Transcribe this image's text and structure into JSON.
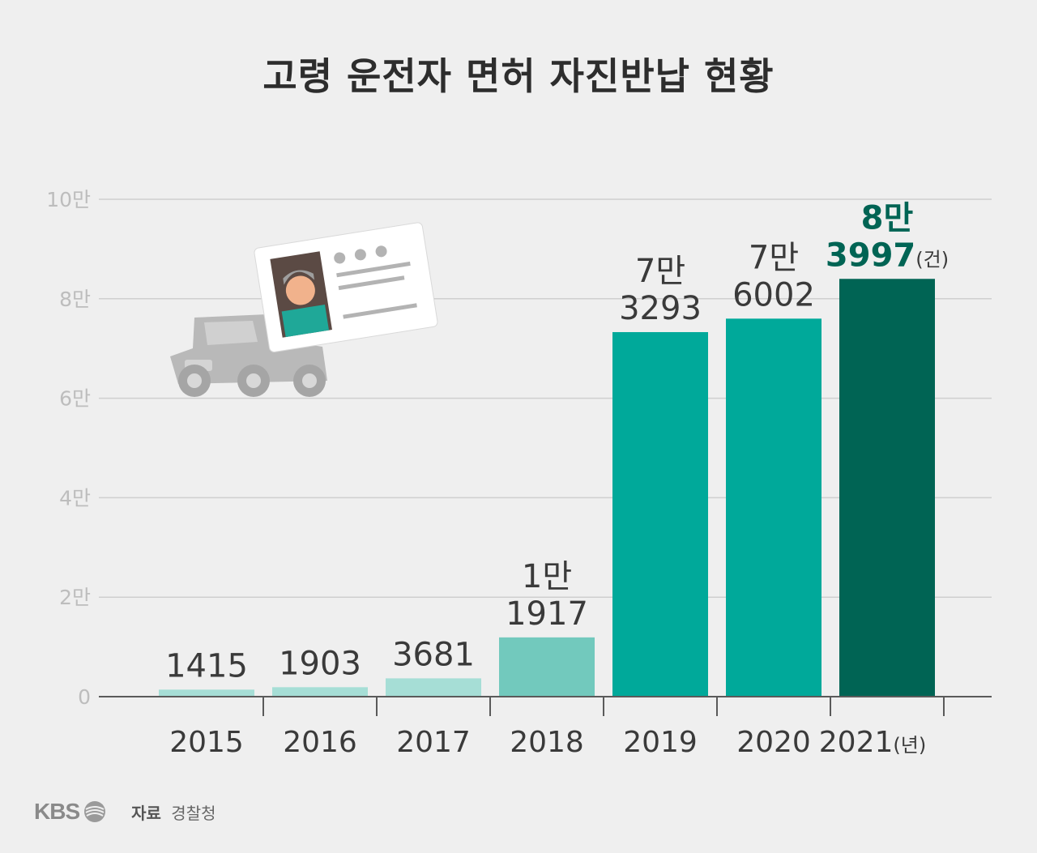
{
  "title": "고령 운전자 면허 자진반납 현황",
  "chart_data": {
    "type": "bar",
    "title": "고령 운전자 면허 자진반납 현황",
    "categories": [
      "2015",
      "2016",
      "2017",
      "2018",
      "2019",
      "2020",
      "2021"
    ],
    "x_unit": "(년)",
    "values": [
      1415,
      1903,
      3681,
      11917,
      73293,
      76002,
      83997
    ],
    "value_labels": [
      [
        "1415"
      ],
      [
        "1903"
      ],
      [
        "3681"
      ],
      [
        "1만",
        "1917"
      ],
      [
        "7만",
        "3293"
      ],
      [
        "7만",
        "6002"
      ],
      [
        "8만",
        "3997"
      ]
    ],
    "value_unit": "(건)",
    "y_ticks": [
      "0",
      "2만",
      "4만",
      "6만",
      "8만",
      "10만"
    ],
    "ylim": [
      0,
      100000
    ],
    "grid": true,
    "bar_colors": [
      "#a6ded6",
      "#a6ded6",
      "#a6ded6",
      "#72c9bd",
      "#00a99a",
      "#00a99a",
      "#006454"
    ],
    "highlight_label_color": "#006454"
  },
  "footer": {
    "logo": "KBS",
    "source_label": "자료",
    "source_value": "경찰청"
  }
}
